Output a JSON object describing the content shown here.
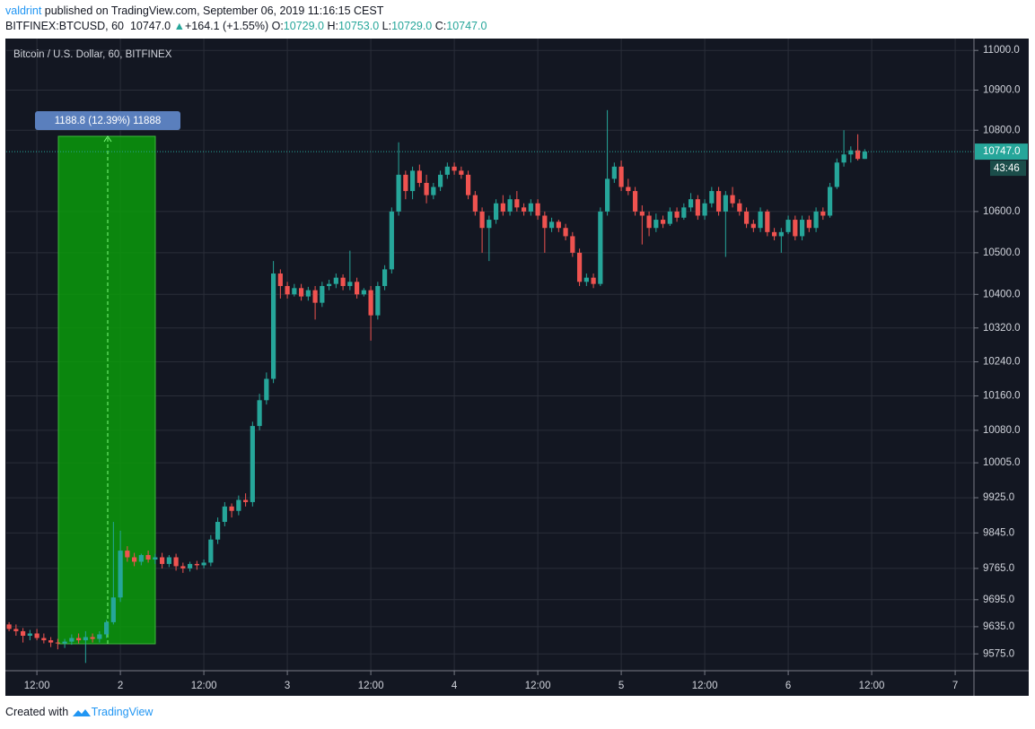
{
  "header": {
    "author": "valdrint",
    "published": " published on TradingView.com, September 06, 2019 11:16:15 CEST",
    "symbol": "BITFINEX:BTCUSD, 60",
    "price": "10747.0",
    "arrow": "▲",
    "change": "+164.1 (+1.55%)",
    "o_label": "O:",
    "o": "10729.0",
    "h_label": "H:",
    "h": "10753.0",
    "l_label": "L:",
    "l": "10729.0",
    "c_label": "C:",
    "c": "10747.0"
  },
  "footer": {
    "text": "Created with",
    "brand": "TradingView"
  },
  "chart_data": {
    "type": "candlestick",
    "title": "Bitcoin / U.S. Dollar, 60, BITFINEX",
    "up_color": "#26a69a",
    "down_color": "#ef5350",
    "log_scale": true,
    "grid": true,
    "measure_label": "1188.8 (12.39%) 11888",
    "last_price": {
      "value": 10747,
      "label": "10747.0"
    },
    "countdown": "43:46",
    "xlim": [
      7.6,
      146.7
    ],
    "ylim": [
      9538,
      11030
    ],
    "xticks": [
      {
        "value": 12,
        "label": "12:00"
      },
      {
        "value": 24,
        "label": "2"
      },
      {
        "value": 36,
        "label": "12:00"
      },
      {
        "value": 48,
        "label": "3"
      },
      {
        "value": 60,
        "label": "12:00"
      },
      {
        "value": 72,
        "label": "4"
      },
      {
        "value": 84,
        "label": "12:00"
      },
      {
        "value": 96,
        "label": "5"
      },
      {
        "value": 108,
        "label": "12:00"
      },
      {
        "value": 120,
        "label": "6"
      },
      {
        "value": 132,
        "label": "12:00"
      },
      {
        "value": 144,
        "label": "7"
      }
    ],
    "yticks": [
      {
        "value": 11000,
        "label": "11000.0"
      },
      {
        "value": 10900,
        "label": "10900.0"
      },
      {
        "value": 10800,
        "label": "10800.0"
      },
      {
        "value": 10600,
        "label": "10600.0"
      },
      {
        "value": 10500,
        "label": "10500.0"
      },
      {
        "value": 10400,
        "label": "10400.0"
      },
      {
        "value": 10320,
        "label": "10320.0"
      },
      {
        "value": 10240,
        "label": "10240.0"
      },
      {
        "value": 10160,
        "label": "10160.0"
      },
      {
        "value": 10080,
        "label": "10080.0"
      },
      {
        "value": 10005,
        "label": "10005.0"
      },
      {
        "value": 9925,
        "label": "9925.0"
      },
      {
        "value": 9845,
        "label": "9845.0"
      },
      {
        "value": 9765,
        "label": "9765.0"
      },
      {
        "value": 9695,
        "label": "9695.0"
      },
      {
        "value": 9635,
        "label": "9635.0"
      },
      {
        "value": 9575,
        "label": "9575.0"
      }
    ],
    "x": [
      8,
      9,
      10,
      11,
      12,
      13,
      14,
      15,
      16,
      17,
      18,
      19,
      20,
      21,
      22,
      23,
      24,
      25,
      26,
      27,
      28,
      29,
      30,
      31,
      32,
      33,
      34,
      35,
      36,
      37,
      38,
      39,
      40,
      41,
      42,
      43,
      44,
      45,
      46,
      47,
      48,
      49,
      50,
      51,
      52,
      53,
      54,
      55,
      56,
      57,
      58,
      59,
      60,
      61,
      62,
      63,
      64,
      65,
      66,
      67,
      68,
      69,
      70,
      71,
      72,
      73,
      74,
      75,
      76,
      77,
      78,
      79,
      80,
      81,
      82,
      83,
      84,
      85,
      86,
      87,
      88,
      89,
      90,
      91,
      92,
      93,
      94,
      95,
      96,
      97,
      98,
      99,
      100,
      101,
      102,
      103,
      104,
      105,
      106,
      107,
      108,
      109,
      110,
      111,
      112,
      113,
      114,
      115,
      116,
      117,
      118,
      119,
      120,
      121,
      122,
      123,
      124,
      125,
      126,
      127,
      128,
      129,
      130,
      131
    ],
    "open": [
      9640,
      9630,
      9625,
      9615,
      9620,
      9610,
      9605,
      9600,
      9598,
      9602,
      9610,
      9605,
      9612,
      9608,
      9618,
      9645,
      9700,
      9805,
      9790,
      9780,
      9795,
      9785,
      9790,
      9775,
      9790,
      9770,
      9765,
      9775,
      9772,
      9778,
      9830,
      9870,
      9905,
      9895,
      9920,
      9915,
      10090,
      10150,
      10200,
      10450,
      10420,
      10400,
      10415,
      10395,
      10410,
      10380,
      10420,
      10425,
      10440,
      10420,
      10430,
      10400,
      10410,
      10350,
      10420,
      10460,
      10600,
      10690,
      10650,
      10700,
      10670,
      10640,
      10660,
      10690,
      10710,
      10700,
      10690,
      10640,
      10600,
      10560,
      10580,
      10620,
      10600,
      10630,
      10610,
      10600,
      10620,
      10590,
      10560,
      10575,
      10560,
      10540,
      10500,
      10430,
      10440,
      10425,
      10600,
      10680,
      10710,
      10660,
      10650,
      10600,
      10590,
      10560,
      10580,
      10570,
      10600,
      10585,
      10610,
      10630,
      10590,
      10620,
      10650,
      10600,
      10640,
      10620,
      10600,
      10570,
      10560,
      10600,
      10550,
      10540,
      10550,
      10580,
      10540,
      10580,
      10560,
      10600,
      10590,
      10660,
      10720,
      10740,
      10750,
      10729
    ],
    "high": [
      9645,
      9640,
      9632,
      9628,
      9630,
      9620,
      9612,
      9608,
      9608,
      9618,
      9620,
      9625,
      9620,
      9625,
      9650,
      9870,
      9850,
      9815,
      9800,
      9798,
      9805,
      9798,
      9800,
      9795,
      9798,
      9778,
      9780,
      9782,
      9785,
      9840,
      9880,
      9915,
      9912,
      9930,
      9935,
      10100,
      10165,
      10215,
      10480,
      10460,
      10430,
      10425,
      10425,
      10418,
      10420,
      10430,
      10435,
      10450,
      10448,
      10505,
      10440,
      10415,
      10420,
      10430,
      10470,
      10610,
      10770,
      10700,
      10710,
      10715,
      10690,
      10670,
      10700,
      10720,
      10720,
      10710,
      10700,
      10650,
      10610,
      10590,
      10630,
      10640,
      10640,
      10650,
      10620,
      10630,
      10630,
      10600,
      10585,
      10580,
      10570,
      10550,
      10510,
      10450,
      10450,
      10610,
      10850,
      10720,
      10725,
      10680,
      10660,
      10615,
      10600,
      10595,
      10590,
      10610,
      10610,
      10620,
      10645,
      10640,
      10630,
      10660,
      10660,
      10650,
      10660,
      10630,
      10610,
      10580,
      10610,
      10605,
      10560,
      10560,
      10590,
      10590,
      10590,
      10590,
      10610,
      10610,
      10670,
      10730,
      10800,
      10760,
      10790,
      10753
    ],
    "low": [
      9625,
      9615,
      9600,
      9605,
      9605,
      9598,
      9590,
      9585,
      9588,
      9595,
      9598,
      9555,
      9600,
      9600,
      9610,
      9640,
      9690,
      9780,
      9770,
      9772,
      9778,
      9775,
      9765,
      9768,
      9760,
      9755,
      9758,
      9762,
      9765,
      9770,
      9820,
      9860,
      9880,
      9885,
      9905,
      9905,
      10080,
      10140,
      10190,
      10390,
      10390,
      10395,
      10385,
      10385,
      10340,
      10370,
      10410,
      10415,
      10410,
      10410,
      10390,
      10395,
      10290,
      10340,
      10410,
      10450,
      10590,
      10630,
      10630,
      10660,
      10620,
      10630,
      10650,
      10680,
      10690,
      10680,
      10630,
      10590,
      10500,
      10480,
      10570,
      10590,
      10590,
      10600,
      10590,
      10590,
      10580,
      10500,
      10550,
      10550,
      10530,
      10490,
      10420,
      10420,
      10415,
      10420,
      10590,
      10670,
      10650,
      10640,
      10590,
      10520,
      10540,
      10550,
      10560,
      10565,
      10575,
      10580,
      10600,
      10580,
      10580,
      10610,
      10590,
      10490,
      10610,
      10590,
      10560,
      10550,
      10550,
      10540,
      10530,
      10500,
      10545,
      10530,
      10530,
      10550,
      10550,
      10580,
      10585,
      10655,
      10710,
      10720,
      10725,
      10729
    ],
    "close": [
      9630,
      9625,
      9615,
      9620,
      9610,
      9605,
      9600,
      9598,
      9602,
      9610,
      9605,
      9612,
      9608,
      9618,
      9645,
      9700,
      9805,
      9790,
      9780,
      9795,
      9785,
      9790,
      9775,
      9790,
      9770,
      9765,
      9775,
      9772,
      9778,
      9830,
      9870,
      9905,
      9895,
      9920,
      9915,
      10090,
      10150,
      10200,
      10450,
      10420,
      10400,
      10415,
      10395,
      10410,
      10380,
      10420,
      10425,
      10440,
      10420,
      10430,
      10400,
      10410,
      10350,
      10420,
      10460,
      10600,
      10690,
      10650,
      10700,
      10670,
      10640,
      10660,
      10690,
      10710,
      10700,
      10690,
      10640,
      10600,
      10560,
      10580,
      10620,
      10600,
      10630,
      10610,
      10600,
      10620,
      10590,
      10560,
      10575,
      10560,
      10540,
      10500,
      10430,
      10440,
      10425,
      10600,
      10680,
      10710,
      10660,
      10650,
      10600,
      10590,
      10560,
      10580,
      10570,
      10600,
      10585,
      10610,
      10630,
      10590,
      10620,
      10650,
      10600,
      10640,
      10620,
      10600,
      10570,
      10560,
      10600,
      10550,
      10540,
      10550,
      10580,
      10540,
      10580,
      10560,
      10600,
      10590,
      10660,
      10720,
      10740,
      10750,
      10729,
      10747
    ]
  }
}
